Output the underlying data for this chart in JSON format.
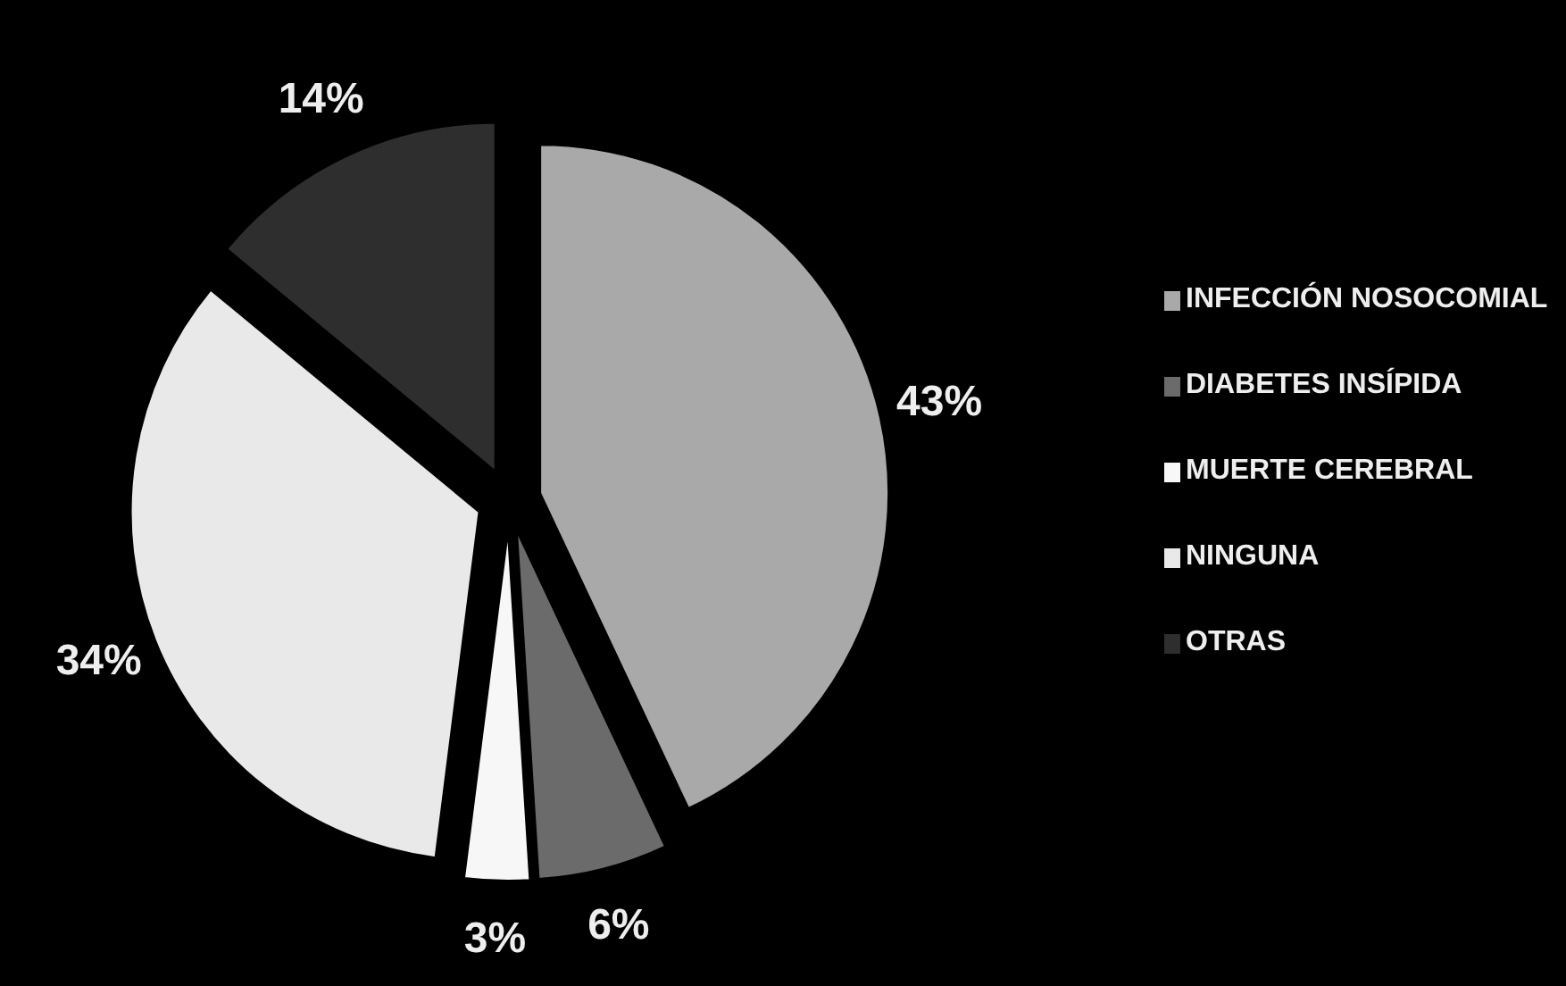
{
  "chart_data": {
    "type": "pie",
    "categories": [
      "INFECCIÓN NOSOCOMIAL",
      "DIABETES INSÍPIDA",
      "MUERTE CEREBRAL",
      "NINGUNA",
      "OTRAS"
    ],
    "values": [
      43,
      6,
      3,
      34,
      14
    ],
    "colors": [
      "#a9a9a9",
      "#6b6b6b",
      "#f7f7f7",
      "#e9e9e9",
      "#2e2e2e"
    ],
    "value_labels": [
      "43%",
      "6%",
      "3%",
      "34%",
      "14%"
    ],
    "legend": "right"
  }
}
